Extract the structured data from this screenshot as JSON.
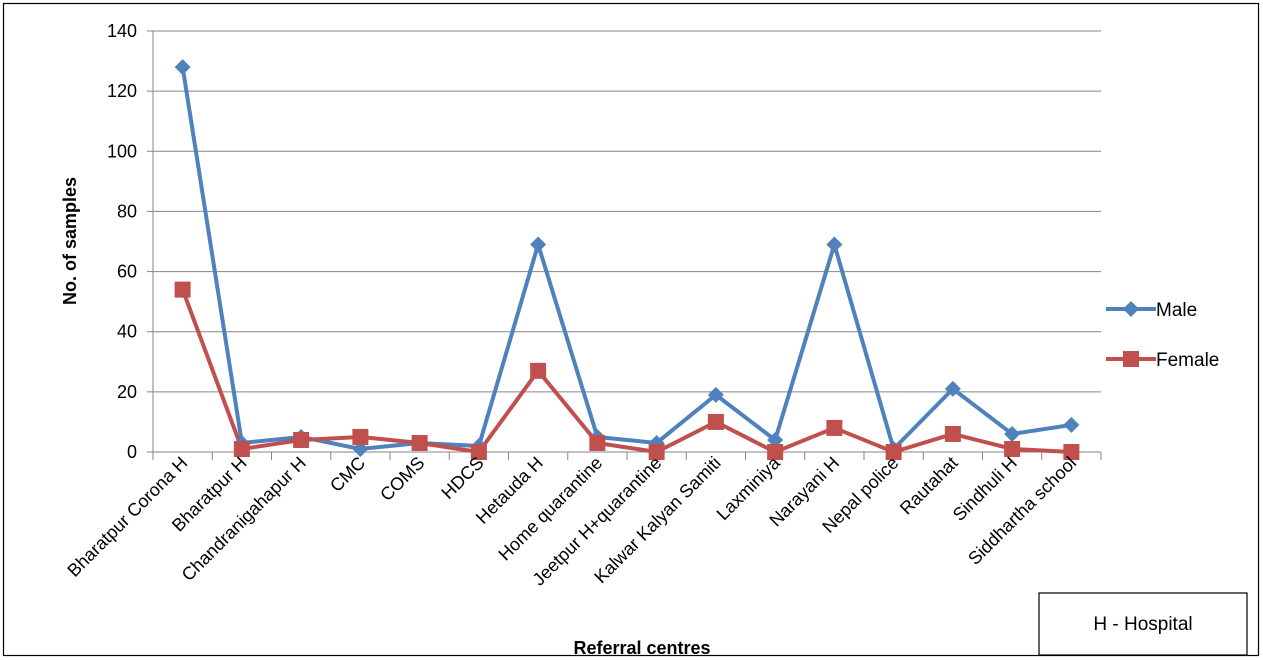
{
  "chart_data": {
    "type": "line",
    "xlabel": "Referral centres",
    "ylabel": "No. of samples",
    "ylim": [
      0,
      140
    ],
    "yticks": [
      0,
      20,
      40,
      60,
      80,
      100,
      120,
      140
    ],
    "categories": [
      "Bharatpur Corona H",
      "Bharatpur H",
      "Chandranigahapur H",
      "CMC",
      "COMS",
      "HDCS",
      "Hetauda H",
      "Home quarantine",
      "Jeetpur H+quarantine",
      "Kalwar Kalyan Samiti",
      "Laxminiya",
      "Narayani H",
      "Nepal police",
      "Rautahat",
      "Sindhuli H",
      "Siddhartha school"
    ],
    "series": [
      {
        "name": "Male",
        "color": "#4F81BD",
        "marker": "diamond",
        "values": [
          128,
          3,
          5,
          1,
          3,
          2,
          69,
          5,
          3,
          19,
          4,
          69,
          1,
          21,
          6,
          9
        ]
      },
      {
        "name": "Female",
        "color": "#C0504D",
        "marker": "square",
        "values": [
          54,
          1,
          4,
          5,
          3,
          0,
          27,
          3,
          0,
          10,
          0,
          8,
          0,
          6,
          1,
          0
        ]
      }
    ],
    "grid": "horizontal",
    "legend": "right",
    "annotation": "H - Hospital"
  }
}
